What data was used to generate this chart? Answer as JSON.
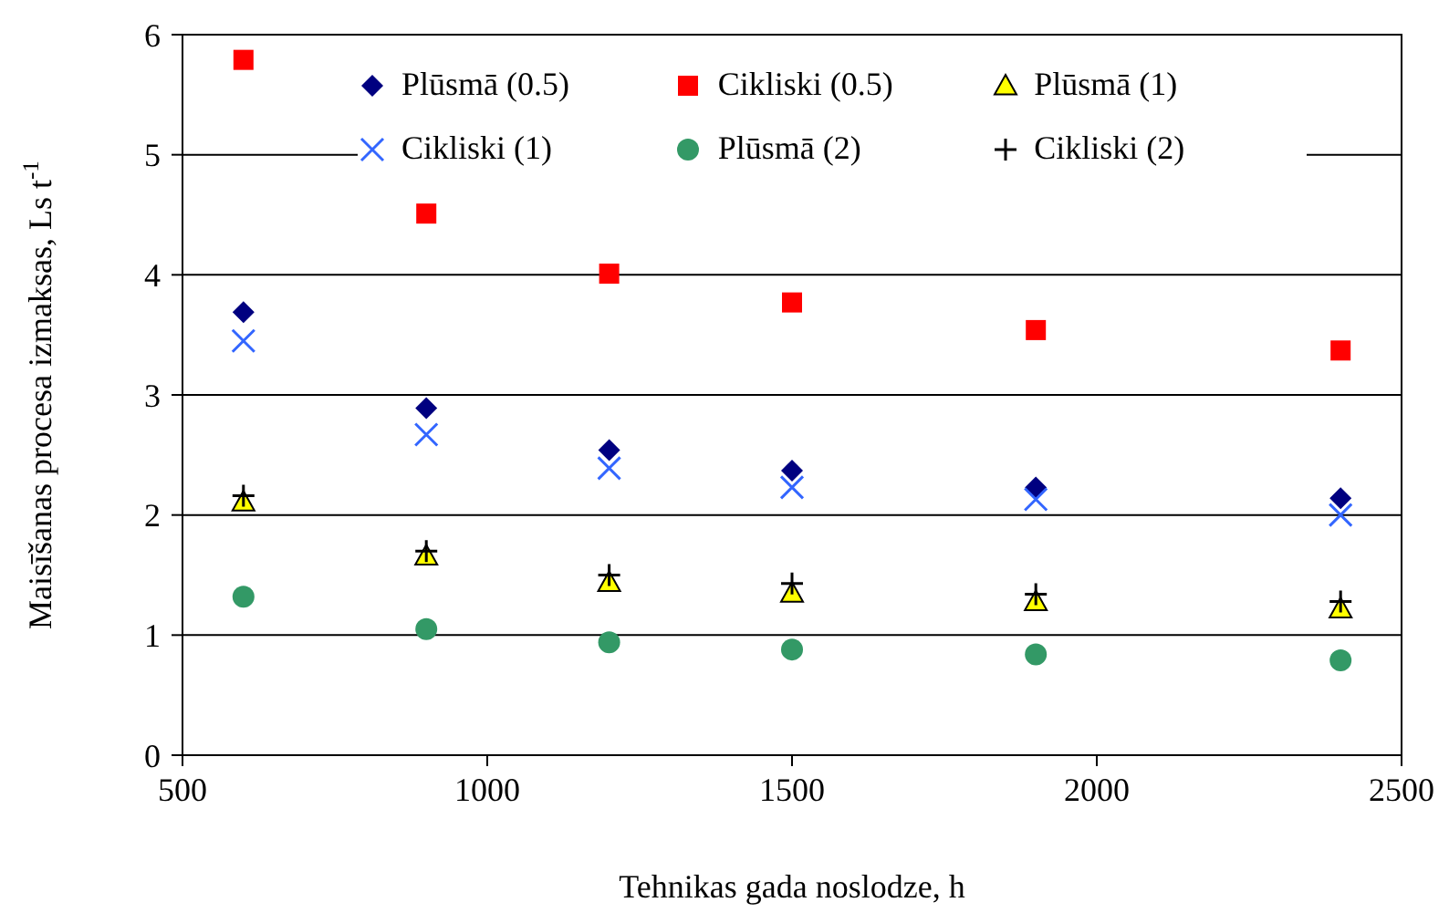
{
  "chart_data": {
    "type": "scatter",
    "xlabel": "Tehnikas gada noslodze, h",
    "ylabel": "Maisīšanas procesa izmaksas, Ls t$^{-1}$",
    "x": [
      600,
      900,
      1200,
      1500,
      1900,
      2400
    ],
    "series": [
      {
        "name": "Plūsmā (0.5)",
        "color": "#000080",
        "marker": "diamond",
        "values": [
          3.69,
          2.89,
          2.54,
          2.37,
          2.23,
          2.14
        ]
      },
      {
        "name": "Cikliski (0.5)",
        "color": "#ff0000",
        "marker": "square",
        "values": [
          5.79,
          4.51,
          4.01,
          3.77,
          3.54,
          3.37
        ]
      },
      {
        "name": "Plūsmā (1)",
        "color": "#ffff00",
        "marker": "triangle",
        "values": [
          2.11,
          1.66,
          1.44,
          1.35,
          1.28,
          1.22
        ]
      },
      {
        "name": "Cikliski (1)",
        "color": "#3366ff",
        "marker": "cross",
        "values": [
          3.45,
          2.67,
          2.39,
          2.23,
          2.13,
          2.0
        ]
      },
      {
        "name": "Plūsmā (2)",
        "color": "#339966",
        "marker": "circle",
        "values": [
          1.32,
          1.05,
          0.94,
          0.88,
          0.84,
          0.79
        ]
      },
      {
        "name": "Cikliski (2)",
        "color": "#000000",
        "marker": "plus",
        "values": [
          2.16,
          1.7,
          1.5,
          1.43,
          1.34,
          1.28
        ]
      }
    ],
    "xlim": [
      500,
      2500
    ],
    "xticks": [
      500,
      1000,
      1500,
      2000,
      2500
    ],
    "ylim": [
      0,
      6
    ],
    "yticks": [
      0,
      1,
      2,
      3,
      4,
      5,
      6
    ],
    "grid": "y",
    "legend": "top"
  }
}
